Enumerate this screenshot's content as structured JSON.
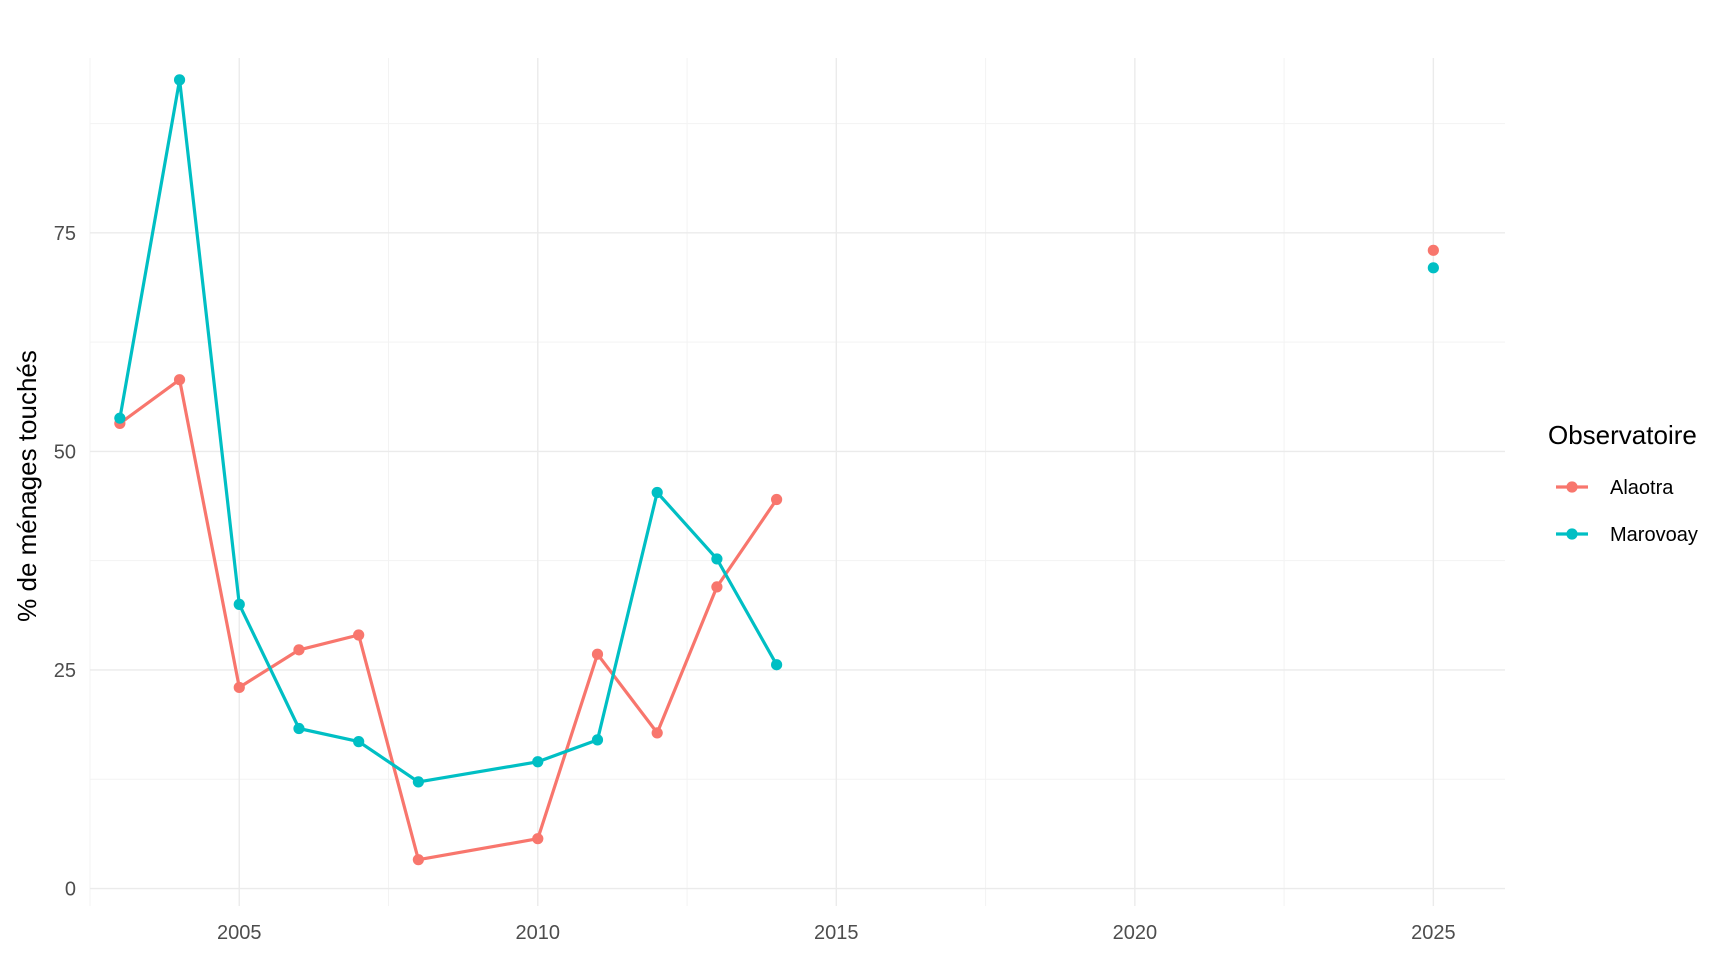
{
  "chart_data": {
    "type": "line",
    "title": "",
    "xlabel": "",
    "ylabel": "% de ménages touchés",
    "xlim": [
      2002.5,
      2026.2
    ],
    "ylim": [
      -2,
      95
    ],
    "x_ticks": [
      2005,
      2010,
      2015,
      2020,
      2025
    ],
    "y_ticks": [
      0,
      25,
      50,
      75
    ],
    "grid": true,
    "legend": {
      "title": "Observatoire",
      "position": "right"
    },
    "series": [
      {
        "name": "Alaotra",
        "color": "#F8766D",
        "points": [
          {
            "x": 2003,
            "y": 53.2
          },
          {
            "x": 2004,
            "y": 58.2
          },
          {
            "x": 2005,
            "y": 23.0
          },
          {
            "x": 2006,
            "y": 27.3
          },
          {
            "x": 2007,
            "y": 29.0
          },
          {
            "x": 2008,
            "y": 3.3
          },
          {
            "x": 2010,
            "y": 5.7
          },
          {
            "x": 2011,
            "y": 26.8
          },
          {
            "x": 2012,
            "y": 17.8
          },
          {
            "x": 2013,
            "y": 34.5
          },
          {
            "x": 2014,
            "y": 44.5
          },
          {
            "x": 2025,
            "y": 73.0
          }
        ]
      },
      {
        "name": "Marovoay",
        "color": "#00BFC4",
        "points": [
          {
            "x": 2003,
            "y": 53.8
          },
          {
            "x": 2004,
            "y": 92.5
          },
          {
            "x": 2005,
            "y": 32.5
          },
          {
            "x": 2006,
            "y": 18.3
          },
          {
            "x": 2007,
            "y": 16.8
          },
          {
            "x": 2008,
            "y": 12.2
          },
          {
            "x": 2010,
            "y": 14.5
          },
          {
            "x": 2011,
            "y": 17.0
          },
          {
            "x": 2012,
            "y": 45.3
          },
          {
            "x": 2013,
            "y": 37.7
          },
          {
            "x": 2014,
            "y": 25.6
          },
          {
            "x": 2025,
            "y": 71.0
          }
        ]
      }
    ]
  }
}
